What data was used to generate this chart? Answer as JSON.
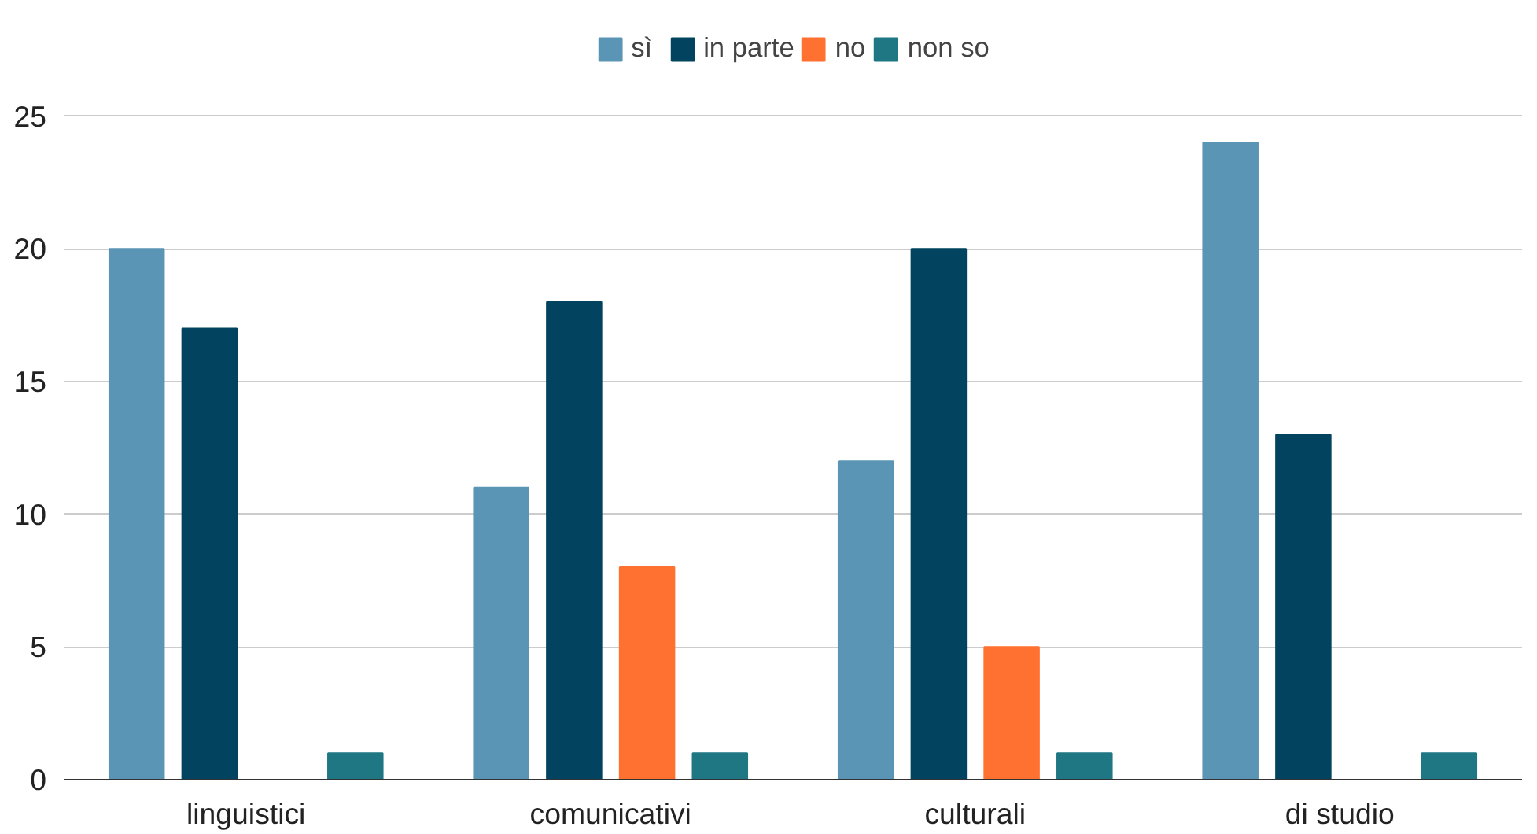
{
  "chart_data": {
    "type": "bar",
    "categories": [
      "linguistici",
      "comunicativi",
      "culturali",
      "di studio"
    ],
    "series": [
      {
        "name": "sì",
        "color": "#5b95b5",
        "values": [
          20,
          11,
          12,
          24
        ]
      },
      {
        "name": "in parte",
        "color": "#02445f",
        "values": [
          17,
          18,
          20,
          13
        ]
      },
      {
        "name": "no",
        "color": "#ff7130",
        "values": [
          0,
          8,
          5,
          0
        ]
      },
      {
        "name": "non so",
        "color": "#1f7783",
        "values": [
          1,
          1,
          1,
          1
        ]
      }
    ],
    "ylim": [
      0,
      25
    ],
    "yticks": [
      0,
      5,
      10,
      15,
      20,
      25
    ],
    "grid": "y",
    "legend": "top"
  }
}
